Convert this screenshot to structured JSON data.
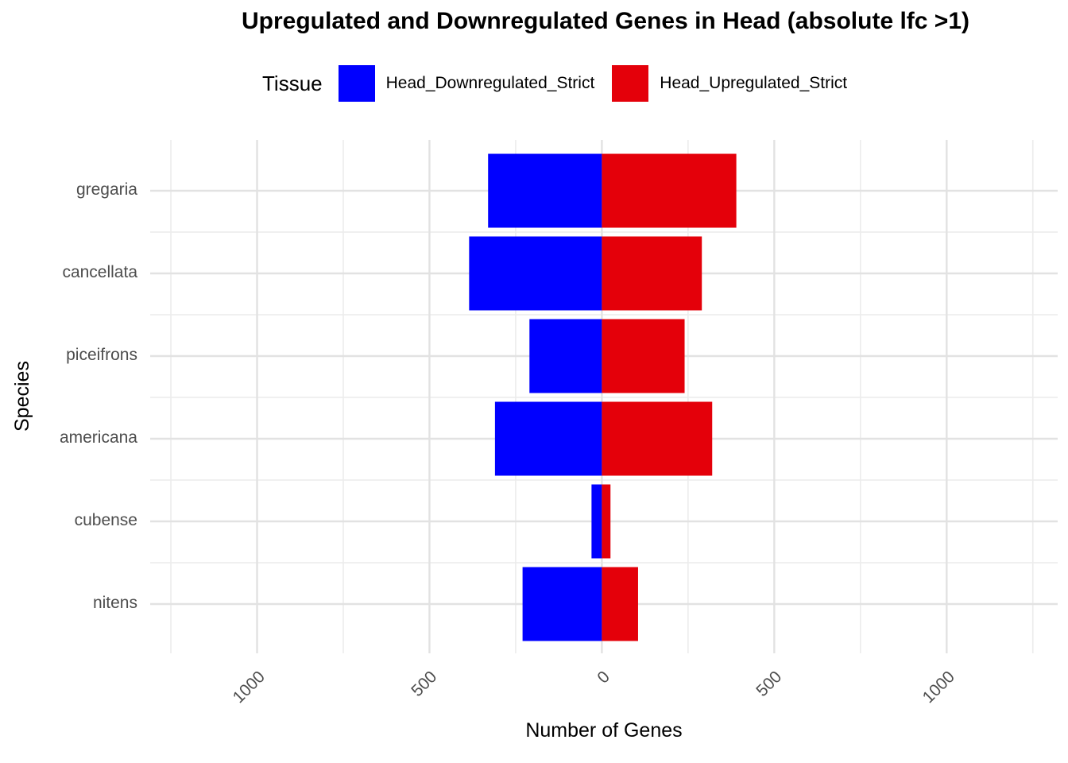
{
  "chart_data": {
    "type": "bar",
    "orientation": "horizontal-diverging",
    "title": "Upregulated and Downregulated Genes in Head (absolute lfc >1)",
    "xlabel": "Number of Genes",
    "ylabel": "Species",
    "legend": {
      "title": "Tissue",
      "position": "top"
    },
    "categories": [
      "gregaria",
      "cancellata",
      "piceifrons",
      "americana",
      "cubense",
      "nitens"
    ],
    "series": [
      {
        "name": "Head_Downregulated_Strict",
        "color": "#0000FF",
        "direction": "left",
        "values": [
          330,
          385,
          210,
          310,
          30,
          230
        ]
      },
      {
        "name": "Head_Upregulated_Strict",
        "color": "#E4000A",
        "direction": "right",
        "values": [
          390,
          290,
          240,
          320,
          25,
          105
        ]
      }
    ],
    "x_ticks": {
      "values": [
        -1000,
        -500,
        0,
        500,
        1000
      ],
      "labels": [
        "1000",
        "500",
        "0",
        "500",
        "1000"
      ]
    },
    "x_minor_gridlines": [
      -1250,
      -750,
      -250,
      250,
      750,
      1250
    ],
    "xlim": [
      -1310,
      1322
    ],
    "grid": true,
    "grid_major_color": "#E2E2E2",
    "grid_minor_color": "#ECECEC",
    "background_color": "#FFFFFF",
    "axis_text_color": "#4D4D4D",
    "title_color": "#000000"
  }
}
